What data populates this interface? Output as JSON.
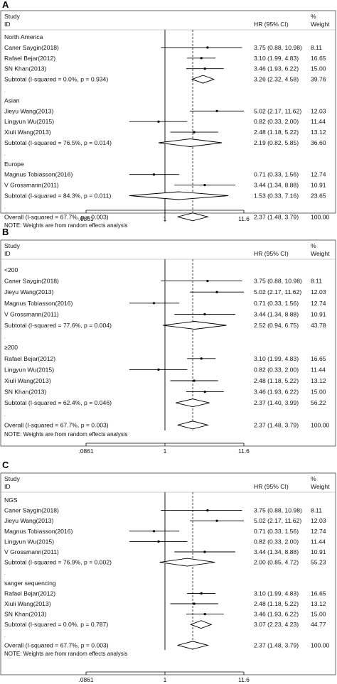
{
  "chart_data": [
    {
      "panel": "A",
      "type": "forest",
      "col_study": "Study",
      "col_id": "ID",
      "col_hr": "HR (95% CI)",
      "col_weight_pct": "%",
      "col_weight": "Weight",
      "xticks": [
        ".0861",
        "1",
        "11.6"
      ],
      "xlim": [
        0.0861,
        11.6
      ],
      "note": "NOTE: Weights are from random effects analysis",
      "rows": [
        {
          "kind": "group",
          "label": "North America"
        },
        {
          "kind": "study",
          "label": "Caner Saygin(2018)",
          "hr": 3.75,
          "lo": 0.88,
          "hi": 10.98,
          "ci_text": "3.75 (0.88, 10.98)",
          "weight": 8.11,
          "weight_text": "8.11"
        },
        {
          "kind": "study",
          "label": "Rafael Bejar(2012)",
          "hr": 3.1,
          "lo": 1.99,
          "hi": 4.83,
          "ci_text": "3.10 (1.99, 4.83)",
          "weight": 16.65,
          "weight_text": "16.65"
        },
        {
          "kind": "study",
          "label": "SN Khan(2013)",
          "hr": 3.46,
          "lo": 1.93,
          "hi": 6.22,
          "ci_text": "3.46 (1.93, 6.22)",
          "weight": 15.0,
          "weight_text": "15.00"
        },
        {
          "kind": "subtotal",
          "label": "Subtotal  (I-squared = 0.0%, p = 0.934)",
          "hr": 3.26,
          "lo": 2.32,
          "hi": 4.58,
          "ci_text": "3.26 (2.32, 4.58)",
          "weight": 39.76,
          "weight_text": "39.76"
        },
        {
          "kind": "spacer",
          "label": "."
        },
        {
          "kind": "group",
          "label": "Asian"
        },
        {
          "kind": "study",
          "label": "Jieyu Wang(2013)",
          "hr": 5.02,
          "lo": 2.17,
          "hi": 11.62,
          "ci_text": "5.02 (2.17, 11.62)",
          "weight": 12.03,
          "weight_text": "12.03"
        },
        {
          "kind": "study",
          "label": "Lingyun Wu(2015)",
          "hr": 0.82,
          "lo": 0.33,
          "hi": 2.0,
          "ci_text": "0.82 (0.33, 2.00)",
          "weight": 11.44,
          "weight_text": "11.44"
        },
        {
          "kind": "study",
          "label": "Xiuli Wang(2013)",
          "hr": 2.48,
          "lo": 1.18,
          "hi": 5.22,
          "ci_text": "2.48 (1.18, 5.22)",
          "weight": 13.12,
          "weight_text": "13.12"
        },
        {
          "kind": "subtotal",
          "label": "Subtotal  (I-squared = 76.5%, p = 0.014)",
          "hr": 2.19,
          "lo": 0.82,
          "hi": 5.85,
          "ci_text": "2.19 (0.82, 5.85)",
          "weight": 36.6,
          "weight_text": "36.60"
        },
        {
          "kind": "spacer",
          "label": "."
        },
        {
          "kind": "group",
          "label": "Europe"
        },
        {
          "kind": "study",
          "label": "Magnus Tobiasson(2016)",
          "hr": 0.71,
          "lo": 0.33,
          "hi": 1.56,
          "ci_text": "0.71 (0.33, 1.56)",
          "weight": 12.74,
          "weight_text": "12.74"
        },
        {
          "kind": "study",
          "label": "V Grossmann(2011)",
          "hr": 3.44,
          "lo": 1.34,
          "hi": 8.88,
          "ci_text": "3.44 (1.34, 8.88)",
          "weight": 10.91,
          "weight_text": "10.91"
        },
        {
          "kind": "subtotal",
          "label": "Subtotal  (I-squared = 84.3%, p = 0.011)",
          "hr": 1.53,
          "lo": 0.33,
          "hi": 7.16,
          "ci_text": "1.53 (0.33, 7.16)",
          "weight": 23.65,
          "weight_text": "23.65"
        },
        {
          "kind": "spacer",
          "label": "."
        },
        {
          "kind": "overall",
          "label": "Overall  (I-squared = 67.7%, p = 0.003)",
          "hr": 2.37,
          "lo": 1.48,
          "hi": 3.79,
          "ci_text": "2.37 (1.48, 3.79)",
          "weight": 100.0,
          "weight_text": "100.00"
        }
      ]
    },
    {
      "panel": "B",
      "type": "forest",
      "col_study": "Study",
      "col_id": "ID",
      "col_hr": "HR (95% CI)",
      "col_weight_pct": "%",
      "col_weight": "Weight",
      "xticks": [
        ".0861",
        "1",
        "11.6"
      ],
      "xlim": [
        0.0861,
        11.6
      ],
      "note": "NOTE: Weights are from random effects analysis",
      "rows": [
        {
          "kind": "group",
          "label": "<200"
        },
        {
          "kind": "study",
          "label": "Caner Saygin(2018)",
          "hr": 3.75,
          "lo": 0.88,
          "hi": 10.98,
          "ci_text": "3.75 (0.88, 10.98)",
          "weight": 8.11,
          "weight_text": "8.11"
        },
        {
          "kind": "study",
          "label": "Jieyu Wang(2013)",
          "hr": 5.02,
          "lo": 2.17,
          "hi": 11.62,
          "ci_text": "5.02 (2.17, 11.62)",
          "weight": 12.03,
          "weight_text": "12.03"
        },
        {
          "kind": "study",
          "label": "Magnus Tobiasson(2016)",
          "hr": 0.71,
          "lo": 0.33,
          "hi": 1.56,
          "ci_text": "0.71 (0.33, 1.56)",
          "weight": 12.74,
          "weight_text": "12.74"
        },
        {
          "kind": "study",
          "label": "V Grossmann(2011)",
          "hr": 3.44,
          "lo": 1.34,
          "hi": 8.88,
          "ci_text": "3.44 (1.34, 8.88)",
          "weight": 10.91,
          "weight_text": "10.91"
        },
        {
          "kind": "subtotal",
          "label": "Subtotal  (I-squared = 77.6%, p = 0.004)",
          "hr": 2.52,
          "lo": 0.94,
          "hi": 6.75,
          "ci_text": "2.52 (0.94, 6.75)",
          "weight": 43.78,
          "weight_text": "43.78"
        },
        {
          "kind": "spacer",
          "label": "."
        },
        {
          "kind": "group",
          "label": "≥200"
        },
        {
          "kind": "study",
          "label": "Rafael Bejar(2012)",
          "hr": 3.1,
          "lo": 1.99,
          "hi": 4.83,
          "ci_text": "3.10 (1.99, 4.83)",
          "weight": 16.65,
          "weight_text": "16.65"
        },
        {
          "kind": "study",
          "label": "Lingyun Wu(2015)",
          "hr": 0.82,
          "lo": 0.33,
          "hi": 2.0,
          "ci_text": "0.82 (0.33, 2.00)",
          "weight": 11.44,
          "weight_text": "11.44"
        },
        {
          "kind": "study",
          "label": "Xiuli Wang(2013)",
          "hr": 2.48,
          "lo": 1.18,
          "hi": 5.22,
          "ci_text": "2.48 (1.18, 5.22)",
          "weight": 13.12,
          "weight_text": "13.12"
        },
        {
          "kind": "study",
          "label": "SN Khan(2013)",
          "hr": 3.46,
          "lo": 1.93,
          "hi": 6.22,
          "ci_text": "3.46 (1.93, 6.22)",
          "weight": 15.0,
          "weight_text": "15.00"
        },
        {
          "kind": "subtotal",
          "label": "Subtotal  (I-squared = 62.4%, p = 0.046)",
          "hr": 2.37,
          "lo": 1.4,
          "hi": 3.99,
          "ci_text": "2.37 (1.40, 3.99)",
          "weight": 56.22,
          "weight_text": "56.22"
        },
        {
          "kind": "spacer",
          "label": "."
        },
        {
          "kind": "overall",
          "label": "Overall  (I-squared = 67.7%, p = 0.003)",
          "hr": 2.37,
          "lo": 1.48,
          "hi": 3.79,
          "ci_text": "2.37 (1.48, 3.79)",
          "weight": 100.0,
          "weight_text": "100.00"
        }
      ]
    },
    {
      "panel": "C",
      "type": "forest",
      "col_study": "Study",
      "col_id": "ID",
      "col_hr": "HR (95% CI)",
      "col_weight_pct": "%",
      "col_weight": "Weight",
      "xticks": [
        ".0861",
        "1",
        "11.6"
      ],
      "xlim": [
        0.0861,
        11.6
      ],
      "note": "NOTE: Weights are from random effects analysis",
      "rows": [
        {
          "kind": "group",
          "label": "NGS"
        },
        {
          "kind": "study",
          "label": "Caner Saygin(2018)",
          "hr": 3.75,
          "lo": 0.88,
          "hi": 10.98,
          "ci_text": "3.75 (0.88, 10.98)",
          "weight": 8.11,
          "weight_text": "8.11"
        },
        {
          "kind": "study",
          "label": "Jieyu Wang(2013)",
          "hr": 5.02,
          "lo": 2.17,
          "hi": 11.62,
          "ci_text": "5.02 (2.17, 11.62)",
          "weight": 12.03,
          "weight_text": "12.03"
        },
        {
          "kind": "study",
          "label": "Magnus Tobiasson(2016)",
          "hr": 0.71,
          "lo": 0.33,
          "hi": 1.56,
          "ci_text": "0.71 (0.33, 1.56)",
          "weight": 12.74,
          "weight_text": "12.74"
        },
        {
          "kind": "study",
          "label": "Lingyun Wu(2015)",
          "hr": 0.82,
          "lo": 0.33,
          "hi": 2.0,
          "ci_text": "0.82 (0.33, 2.00)",
          "weight": 11.44,
          "weight_text": "11.44"
        },
        {
          "kind": "study",
          "label": "V Grossmann(2011)",
          "hr": 3.44,
          "lo": 1.34,
          "hi": 8.88,
          "ci_text": "3.44 (1.34, 8.88)",
          "weight": 10.91,
          "weight_text": "10.91"
        },
        {
          "kind": "subtotal",
          "label": "Subtotal  (I-squared = 76.9%, p = 0.002)",
          "hr": 2.0,
          "lo": 0.85,
          "hi": 4.72,
          "ci_text": "2.00 (0.85, 4.72)",
          "weight": 55.23,
          "weight_text": "55.23"
        },
        {
          "kind": "spacer",
          "label": "."
        },
        {
          "kind": "group",
          "label": "sanger sequencing"
        },
        {
          "kind": "study",
          "label": "Rafael Bejar(2012)",
          "hr": 3.1,
          "lo": 1.99,
          "hi": 4.83,
          "ci_text": "3.10 (1.99, 4.83)",
          "weight": 16.65,
          "weight_text": "16.65"
        },
        {
          "kind": "study",
          "label": "Xiuli Wang(2013)",
          "hr": 2.48,
          "lo": 1.18,
          "hi": 5.22,
          "ci_text": "2.48 (1.18, 5.22)",
          "weight": 13.12,
          "weight_text": "13.12"
        },
        {
          "kind": "study",
          "label": "SN Khan(2013)",
          "hr": 3.46,
          "lo": 1.93,
          "hi": 6.22,
          "ci_text": "3.46 (1.93, 6.22)",
          "weight": 15.0,
          "weight_text": "15.00"
        },
        {
          "kind": "subtotal",
          "label": "Subtotal  (I-squared = 0.0%, p = 0.787)",
          "hr": 3.07,
          "lo": 2.23,
          "hi": 4.23,
          "ci_text": "3.07 (2.23, 4.23)",
          "weight": 44.77,
          "weight_text": "44.77"
        },
        {
          "kind": "spacer",
          "label": "."
        },
        {
          "kind": "overall",
          "label": "Overall  (I-squared = 67.7%, p = 0.003)",
          "hr": 2.37,
          "lo": 1.48,
          "hi": 3.79,
          "ci_text": "2.37 (1.48, 3.79)",
          "weight": 100.0,
          "weight_text": "100.00"
        }
      ]
    }
  ]
}
